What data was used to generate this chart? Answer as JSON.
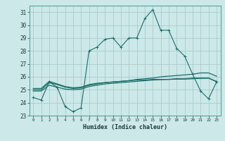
{
  "xlabel": "Humidex (Indice chaleur)",
  "bg_color": "#cce8e8",
  "grid_color": "#aacccc",
  "line_color": "#1a6e6a",
  "x_values": [
    0,
    1,
    2,
    3,
    4,
    5,
    6,
    7,
    8,
    9,
    10,
    11,
    12,
    13,
    14,
    15,
    16,
    17,
    18,
    19,
    20,
    21,
    22,
    23
  ],
  "line1_y": [
    24.4,
    24.2,
    25.6,
    25.2,
    23.7,
    23.3,
    23.6,
    28.0,
    28.3,
    28.9,
    29.0,
    28.3,
    29.0,
    29.0,
    30.5,
    31.2,
    29.6,
    29.6,
    28.2,
    27.6,
    26.2,
    24.9,
    24.3,
    25.6
  ],
  "line2_y": [
    25.1,
    25.1,
    25.65,
    25.45,
    25.25,
    25.15,
    25.2,
    25.4,
    25.5,
    25.55,
    25.6,
    25.65,
    25.7,
    25.75,
    25.75,
    25.8,
    25.8,
    25.8,
    25.85,
    25.85,
    25.9,
    25.9,
    25.9,
    25.65
  ],
  "line3_y": [
    25.0,
    25.0,
    25.55,
    25.4,
    25.2,
    25.1,
    25.15,
    25.35,
    25.45,
    25.55,
    25.6,
    25.65,
    25.7,
    25.8,
    25.85,
    25.9,
    26.0,
    26.05,
    26.1,
    26.15,
    26.2,
    26.3,
    26.3,
    26.05
  ],
  "line4_y": [
    24.9,
    24.9,
    25.35,
    25.2,
    25.05,
    25.0,
    25.05,
    25.25,
    25.35,
    25.45,
    25.5,
    25.55,
    25.6,
    25.65,
    25.7,
    25.75,
    25.78,
    25.8,
    25.82,
    25.82,
    25.85,
    25.88,
    25.9,
    25.62
  ],
  "ylim": [
    23,
    31.5
  ],
  "yticks": [
    23,
    24,
    25,
    26,
    27,
    28,
    29,
    30,
    31
  ],
  "xlim": [
    -0.5,
    23.5
  ]
}
